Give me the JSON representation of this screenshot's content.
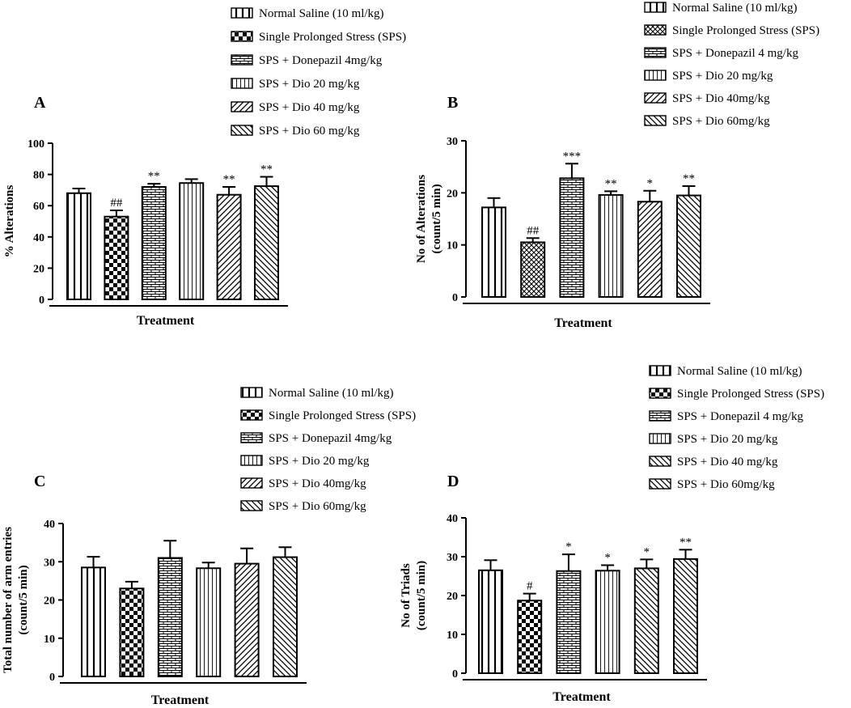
{
  "chart_data": [
    {
      "panel": "A",
      "type": "bar",
      "title": "",
      "xlabel": "Treatment",
      "ylabel": "% Alterations",
      "ylim": [
        0,
        100
      ],
      "yticks": [
        0,
        20,
        40,
        60,
        80,
        100
      ],
      "legend": [
        "Normal Saline (10 ml/kg)",
        "Single Prolonged Stress (SPS)",
        "SPS + Donepazil 4mg/kg",
        "SPS + Dio 20 mg/kg",
        "SPS + Dio 40 mg/kg",
        "SPS + Dio 60 mg/kg"
      ],
      "series": [
        {
          "name": "Mean",
          "values": [
            68,
            53,
            72,
            74.5,
            67,
            72.5
          ]
        }
      ],
      "errors": [
        3,
        4,
        2,
        2.5,
        5,
        6
      ],
      "annotations": [
        "",
        "##",
        "**",
        "",
        "**",
        "**"
      ],
      "patterns": [
        "vlines",
        "checker",
        "brick",
        "vthin",
        "diag-right",
        "diag-left"
      ]
    },
    {
      "panel": "B",
      "type": "bar",
      "title": "",
      "xlabel": "Treatment",
      "ylabel": "No of Alterations (count/5 min)",
      "ylabel_lines": [
        "No of Alterations",
        "(count/5 min)"
      ],
      "ylim": [
        0,
        30
      ],
      "yticks": [
        0,
        10,
        20,
        30
      ],
      "legend": [
        "Normal Saline (10 ml/kg)",
        "Single Prolonged Stress (SPS)",
        "SPS + Donepazil 4 mg/kg",
        "SPS + Dio 20 mg/kg",
        "SPS + Dio 40mg/kg",
        "SPS + Dio 60mg/kg"
      ],
      "series": [
        {
          "name": "Mean",
          "values": [
            17.2,
            10.5,
            22.8,
            19.6,
            18.3,
            19.5
          ]
        }
      ],
      "errors": [
        1.8,
        0.8,
        2.8,
        0.7,
        2.1,
        1.8
      ],
      "annotations": [
        "",
        "##",
        "***",
        "**",
        "*",
        "**"
      ],
      "patterns": [
        "vlines",
        "crosshatch",
        "brick",
        "vthin",
        "diag-right",
        "diag-left"
      ]
    },
    {
      "panel": "C",
      "type": "bar",
      "title": "",
      "xlabel": "Treatment",
      "ylabel": "Total number of arm entries (count/5 min)",
      "ylabel_lines": [
        "Total number of arm entries",
        "(count/5 min)"
      ],
      "ylim": [
        0,
        40
      ],
      "yticks": [
        0,
        10,
        20,
        30,
        40
      ],
      "legend": [
        "Normal Saline (10 ml/kg)",
        "Single Prolonged Stress (SPS)",
        "SPS + Donepazil 4mg/kg",
        "SPS + Dio 20 mg/kg",
        "SPS + Dio 40mg/kg",
        "SPS + Dio 60mg/kg"
      ],
      "series": [
        {
          "name": "Mean",
          "values": [
            28.5,
            23,
            31,
            28.3,
            29.5,
            31.2
          ]
        }
      ],
      "errors": [
        2.8,
        1.8,
        4.5,
        1.5,
        4,
        2.6
      ],
      "annotations": [
        "",
        "",
        "",
        "",
        "",
        ""
      ],
      "patterns": [
        "vlines",
        "checker",
        "brick",
        "vthin",
        "diag-right",
        "diag-left"
      ]
    },
    {
      "panel": "D",
      "type": "bar",
      "title": "",
      "xlabel": "Treatment",
      "ylabel": "No of Triads (count/5 min)",
      "ylabel_lines": [
        "No of Triads",
        "(count/5 min)"
      ],
      "ylim": [
        0,
        40
      ],
      "yticks": [
        0,
        10,
        20,
        30,
        40
      ],
      "legend": [
        "Normal Saline (10 ml/kg)",
        "Single Prolonged Stress (SPS)",
        "SPS + Donepazil 4 mg/kg",
        "SPS + Dio 20 mg/kg",
        "SPS + Dio 40 mg/kg",
        "SPS + Dio 60mg/kg"
      ],
      "series": [
        {
          "name": "Mean",
          "values": [
            26.5,
            18.7,
            26.3,
            26.4,
            27,
            29.4
          ]
        }
      ],
      "errors": [
        2.6,
        1.8,
        4.3,
        1.4,
        2.3,
        2.4
      ],
      "annotations": [
        "",
        "#",
        "*",
        "*",
        "*",
        "**"
      ],
      "patterns": [
        "vlines",
        "checker",
        "brick",
        "vthin",
        "diag-left",
        "diag-left"
      ]
    }
  ]
}
